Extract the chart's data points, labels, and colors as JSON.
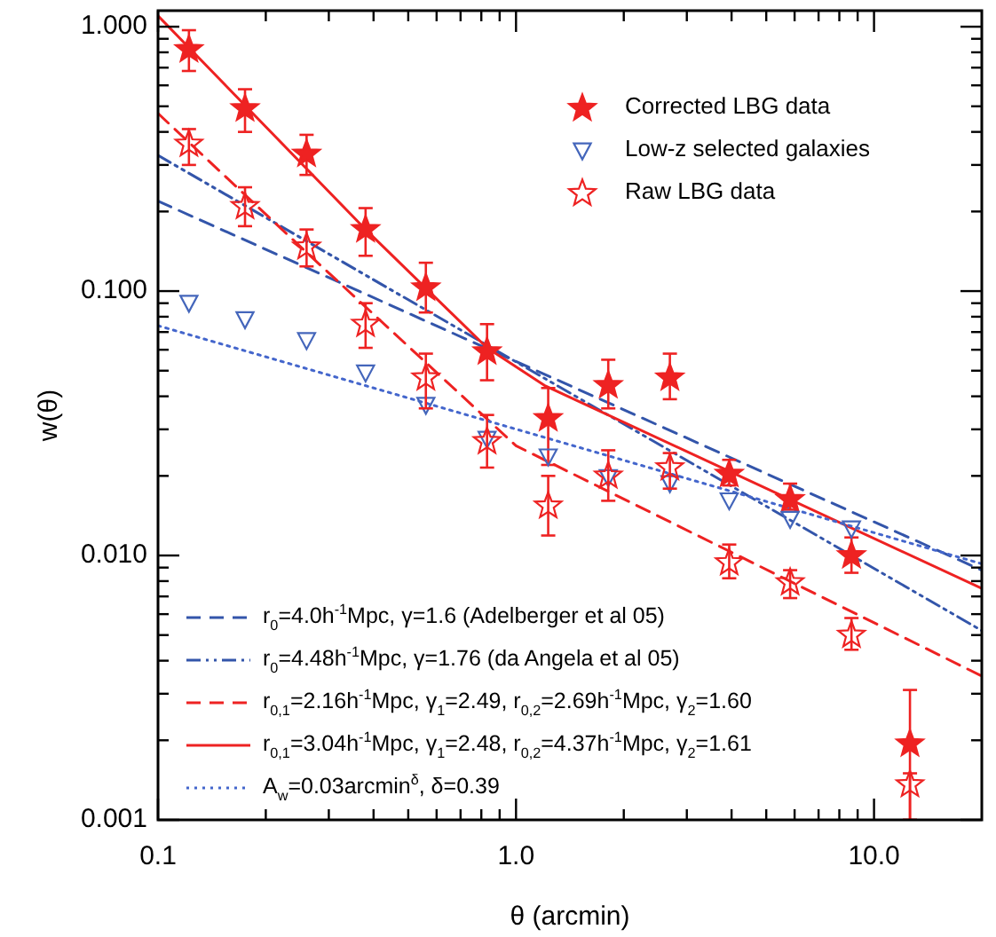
{
  "chart_data": {
    "type": "scatter",
    "xlabel": "θ (arcmin)",
    "ylabel": "w(θ)",
    "log": "xy",
    "xlim": [
      0.1,
      20
    ],
    "ylim": [
      0.001,
      1.15
    ],
    "xticks": [
      {
        "value": 0.1,
        "label": "0.1"
      },
      {
        "value": 1,
        "label": "1.0"
      },
      {
        "value": 10,
        "label": "10.0"
      }
    ],
    "yticks": [
      {
        "value": 0.001,
        "label": "0.001"
      },
      {
        "value": 0.01,
        "label": "0.010"
      },
      {
        "value": 0.1,
        "label": "0.100"
      },
      {
        "value": 1,
        "label": "1.000"
      }
    ],
    "grid": false,
    "legend": "bottom left",
    "x": [
      0.122,
      0.175,
      0.26,
      0.38,
      0.56,
      0.83,
      1.23,
      1.81,
      2.69,
      3.94,
      5.83,
      8.65,
      12.6
    ],
    "series": [
      {
        "name": "Corrected LBG data",
        "marker": "star",
        "color": "#ee2222",
        "values": [
          0.82,
          0.49,
          0.33,
          0.171,
          0.103,
          0.059,
          0.033,
          0.044,
          0.047,
          0.0203,
          0.0163,
          0.01,
          0.00194
        ],
        "errors": [
          [
            0.68,
            0.97
          ],
          [
            0.4,
            0.58
          ],
          [
            0.275,
            0.39
          ],
          [
            0.136,
            0.206
          ],
          [
            0.083,
            0.128
          ],
          [
            0.046,
            0.075
          ],
          [
            0.022,
            0.043
          ],
          [
            0.036,
            0.055
          ],
          [
            0.039,
            0.058
          ],
          [
            0.0184,
            0.023
          ],
          [
            0.0149,
            0.0187
          ],
          [
            0.0086,
            0.0117
          ],
          [
            0.001,
            0.0031
          ]
        ]
      },
      {
        "name": "Low-z selected galaxies",
        "marker": "triangle-open",
        "color": "#4466bb",
        "values": [
          0.09,
          0.078,
          0.065,
          0.049,
          0.037,
          0.0275,
          0.0236,
          0.0197,
          0.0187,
          0.0161,
          0.0137,
          0.0126,
          null
        ]
      },
      {
        "name": "Raw LBG data",
        "marker": "star-open",
        "color": "#ee2222",
        "values": [
          0.36,
          0.209,
          0.147,
          0.075,
          0.047,
          0.027,
          0.0154,
          0.02,
          0.0215,
          0.0094,
          0.0079,
          0.005,
          0.00136
        ],
        "errors": [
          [
            0.3,
            0.41
          ],
          [
            0.176,
            0.247
          ],
          [
            0.124,
            0.171
          ],
          [
            0.061,
            0.09
          ],
          [
            0.036,
            0.058
          ],
          [
            0.0215,
            0.034
          ],
          [
            0.0119,
            0.02
          ],
          [
            0.0161,
            0.025
          ],
          [
            0.0179,
            0.0244
          ],
          [
            0.0082,
            0.011
          ],
          [
            0.0069,
            0.0088
          ],
          [
            0.0044,
            0.0058
          ],
          [
            0.001,
            0.0015
          ]
        ]
      },
      {
        "name": "r$_{0}$=4.0h$^{-1}$Mpc, γ=1.6 (Adelberger et al 05)",
        "type": "line",
        "line_style": "dashed",
        "color": "#3355aa",
        "x": [
          0.1,
          20
        ],
        "values": [
          0.219,
          0.0088
        ]
      },
      {
        "name": "r$_{0}$=4.48h$^{-1}$Mpc, γ=1.76 (da Angela et al 05)",
        "type": "line",
        "line_style": "dashdot",
        "color": "#3355aa",
        "x": [
          0.1,
          20
        ],
        "values": [
          0.326,
          0.0052
        ]
      },
      {
        "name": "r$_{0,1}$=2.16h$^{-1}$Mpc, γ$_{1}$=2.49, r$_{0,2}$=2.69h$^{-1}$Mpc, γ$_{2}$=1.60",
        "type": "line",
        "line_style": "dashed",
        "color": "#ee2222",
        "x": [
          0.1,
          0.26,
          1.0,
          20
        ],
        "values": [
          0.47,
          0.14,
          0.026,
          0.0035
        ]
      },
      {
        "name": "r$_{0,1}$=3.04h$^{-1}$Mpc, γ$_{1}$=2.48, r$_{0,2}$=4.37h$^{-1}$Mpc, γ$_{2}$=1.61",
        "type": "line",
        "line_style": "solid",
        "color": "#ee2222",
        "x": [
          0.1,
          0.38,
          0.83,
          1.2,
          20
        ],
        "values": [
          1.1,
          0.171,
          0.061,
          0.044,
          0.0075
        ]
      },
      {
        "name": "A$_{w}$=0.03arcmin$^{δ}$, δ=0.39",
        "type": "line",
        "line_style": "dotted",
        "color": "#4466cc",
        "x": [
          0.1,
          20
        ],
        "values": [
          0.074,
          0.0093
        ]
      }
    ]
  }
}
